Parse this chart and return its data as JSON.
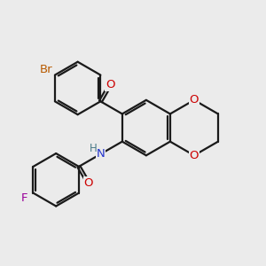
{
  "bg_color": "#ebebeb",
  "bond_color": "#1a1a1a",
  "bond_width": 1.6,
  "colors": {
    "Br": "#b85a00",
    "O": "#cc0000",
    "N": "#2233cc",
    "H": "#4a7a88",
    "F": "#990099"
  },
  "figsize": [
    3.0,
    3.0
  ],
  "dpi": 100
}
